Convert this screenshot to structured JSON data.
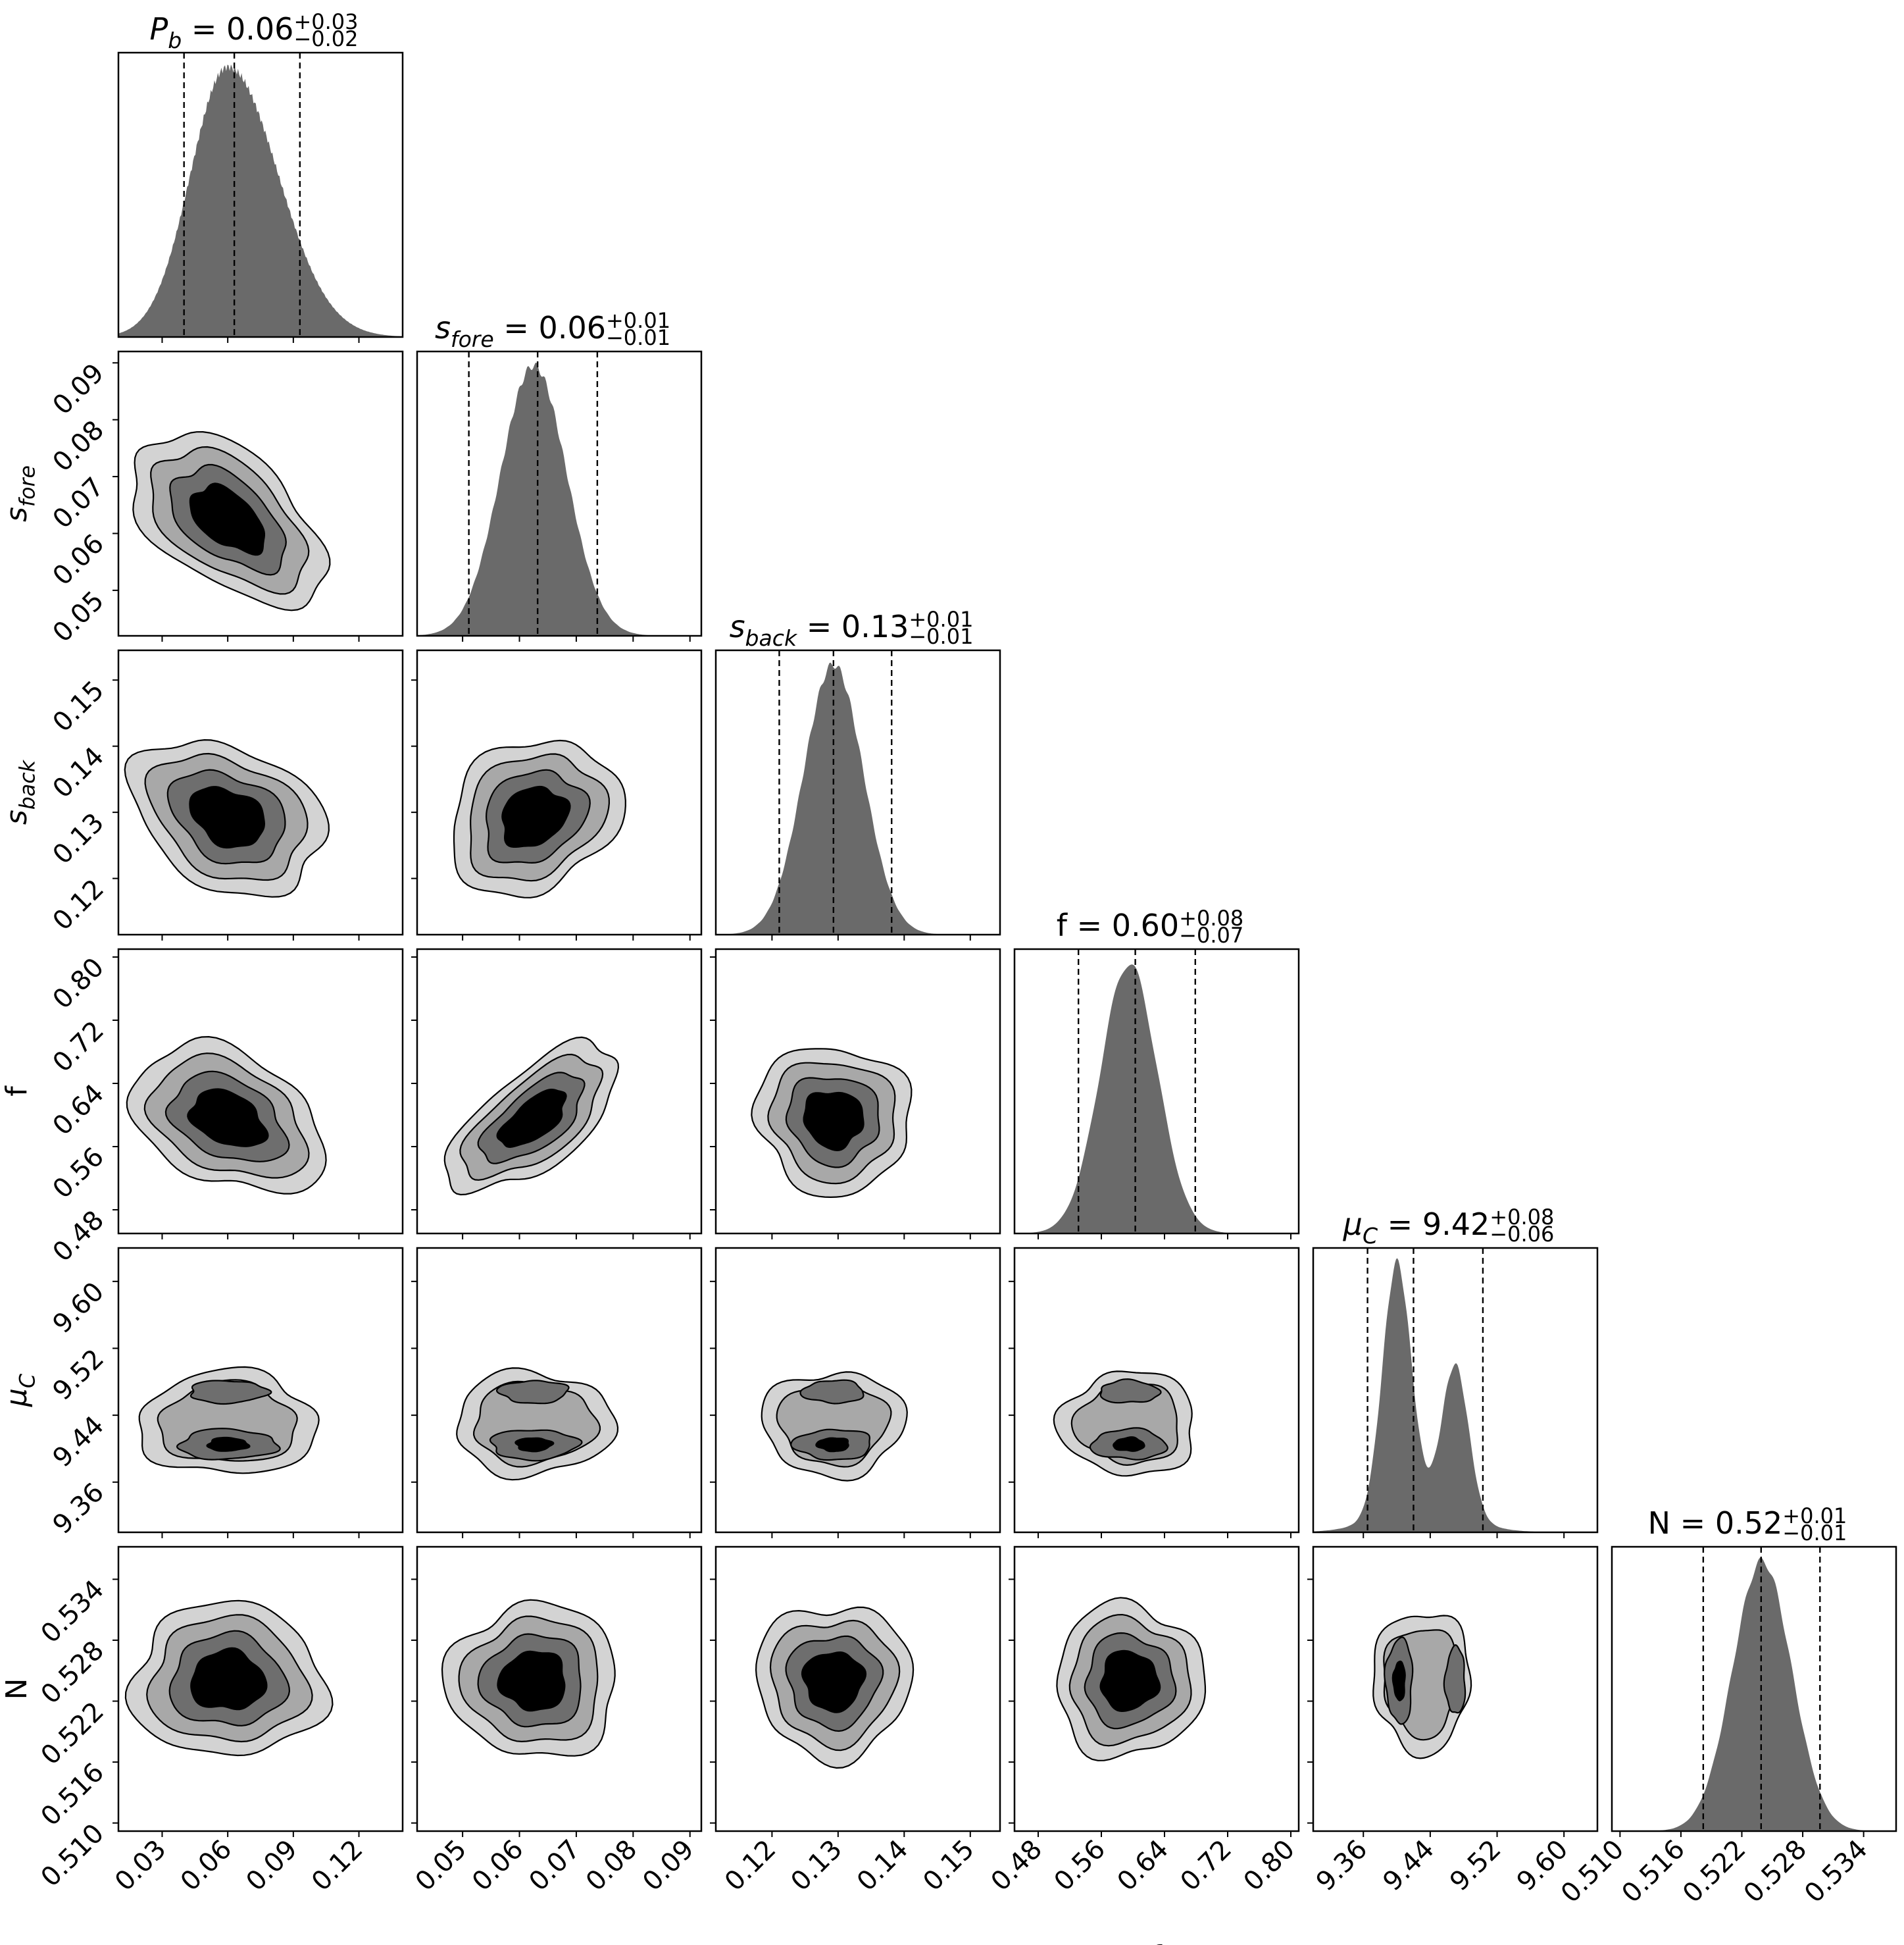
{
  "chart_data": {
    "type": "corner",
    "parameters": [
      {
        "key": "Pb",
        "label": "P_b",
        "ticks": [
          0.03,
          0.06,
          0.09,
          0.12
        ],
        "tick_labels": [
          "0.03",
          "0.06",
          "0.09",
          "0.12"
        ],
        "range": [
          0.01,
          0.14
        ],
        "median": 0.063,
        "q16": 0.04,
        "q84": 0.093,
        "mode": 0.06,
        "sd": 0.017
      },
      {
        "key": "sfore",
        "label": "s_fore",
        "ticks": [
          0.05,
          0.06,
          0.07,
          0.08,
          0.09
        ],
        "tick_labels": [
          "0.05",
          "0.06",
          "0.07",
          "0.08",
          "0.09"
        ],
        "range": [
          0.042,
          0.092
        ],
        "median": 0.0632,
        "q16": 0.0511,
        "q84": 0.0737,
        "mode": 0.0625,
        "sd": 0.0058
      },
      {
        "key": "sback",
        "label": "s_back",
        "ticks": [
          0.12,
          0.13,
          0.14,
          0.15
        ],
        "tick_labels": [
          "0.12",
          "0.13",
          "0.14",
          "0.15"
        ],
        "range": [
          0.1115,
          0.1545
        ],
        "median": 0.1293,
        "q16": 0.1211,
        "q84": 0.1381,
        "mode": 0.1293,
        "sd": 0.0045
      },
      {
        "key": "f",
        "label": "f",
        "ticks": [
          0.48,
          0.56,
          0.64,
          0.72,
          0.8
        ],
        "tick_labels": [
          "0.48",
          "0.56",
          "0.64",
          "0.72",
          "0.80"
        ],
        "range": [
          0.45,
          0.81
        ],
        "median": 0.603,
        "q16": 0.531,
        "q84": 0.679,
        "mode": 0.595,
        "sd": 0.036
      },
      {
        "key": "muC",
        "label": "mu_C",
        "ticks": [
          9.36,
          9.44,
          9.52,
          9.6
        ],
        "tick_labels": [
          "9.36",
          "9.44",
          "9.52",
          "9.60"
        ],
        "range": [
          9.3,
          9.64
        ],
        "median": 9.42,
        "q16": 9.365,
        "q84": 9.503,
        "modes": [
          9.4,
          9.47
        ],
        "sd": 0.025
      },
      {
        "key": "N",
        "label": "N",
        "ticks": [
          0.51,
          0.516,
          0.522,
          0.528,
          0.534
        ],
        "tick_labels": [
          "0.510",
          "0.516",
          "0.522",
          "0.528",
          "0.534"
        ],
        "range": [
          0.5092,
          0.5372
        ],
        "median": 0.5239,
        "q16": 0.5182,
        "q84": 0.5297,
        "mode": 0.524,
        "sd": 0.0029
      }
    ],
    "titles": [
      {
        "name": "P_b",
        "value": "0.06",
        "plus": "+0.03",
        "minus": "−0.02"
      },
      {
        "name": "s_fore",
        "value": "0.06",
        "plus": "+0.01",
        "minus": "−0.01"
      },
      {
        "name": "s_back",
        "value": "0.13",
        "plus": "+0.01",
        "minus": "−0.01"
      },
      {
        "name": "f",
        "value": "0.60",
        "plus": "+0.08",
        "minus": "−0.07"
      },
      {
        "name": "mu_C",
        "value": "9.42",
        "plus": "+0.08",
        "minus": "−0.06"
      },
      {
        "name": "N",
        "value": "0.52",
        "plus": "+0.01",
        "minus": "−0.01"
      }
    ],
    "correlations": {
      "Pb-sfore": -0.5,
      "Pb-sback": -0.3,
      "Pb-f": -0.35,
      "sfore-sback": 0.2,
      "sfore-f": 0.65,
      "sback-f": -0.05
    },
    "contour_fill_colors": [
      "#d3d3d3",
      "#a8a8a8",
      "#6e6e6e",
      "#000000"
    ],
    "histogram_fill_color": "#6a6a6a",
    "quantile_line_style": "dashed"
  }
}
